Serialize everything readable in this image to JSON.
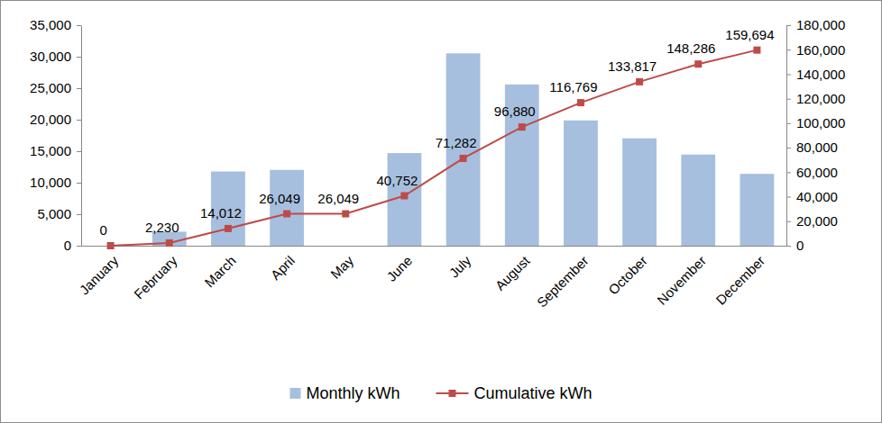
{
  "chart_data": {
    "type": "bar",
    "categories": [
      "January",
      "February",
      "March",
      "April",
      "May",
      "June",
      "July",
      "August",
      "September",
      "October",
      "November",
      "December"
    ],
    "series": [
      {
        "name": "Monthly kWh",
        "type": "bar",
        "color": "#a7bfde",
        "values": [
          0,
          2230,
          11782,
          12037,
          0,
          14703,
          30530,
          25598,
          19889,
          17048,
          14469,
          11408
        ]
      },
      {
        "name": "Cumulative kWh",
        "type": "line",
        "color": "#be4b48",
        "marker": "square",
        "axis": "y2",
        "data_labels": true,
        "values": [
          0,
          2230,
          14012,
          26049,
          26049,
          40752,
          71282,
          96880,
          116769,
          133817,
          148286,
          159694
        ],
        "value_labels": [
          "0",
          "2,230",
          "14,012",
          "26,049",
          "26,049",
          "40,752",
          "71,282",
          "96,880",
          "116,769",
          "133,817",
          "148,286",
          "159,694"
        ]
      }
    ],
    "ylim": [
      0,
      35000
    ],
    "yticks": [
      0,
      {
        "value": 5000,
        "label": "5,000"
      },
      {
        "value": 10000,
        "label": "10,000"
      },
      {
        "value": 15000,
        "label": "15,000"
      },
      {
        "value": 20000,
        "label": "20,000"
      },
      {
        "value": 25000,
        "label": "25,000"
      },
      {
        "value": 30000,
        "label": "30,000"
      },
      {
        "value": 35000,
        "label": "35,000"
      }
    ],
    "y2lim": [
      0,
      180000
    ],
    "y2ticks": [
      0,
      {
        "value": 20000,
        "label": "20,000"
      },
      {
        "value": 40000,
        "label": "40,000"
      },
      {
        "value": 60000,
        "label": "60,000"
      },
      {
        "value": 80000,
        "label": "80,000"
      },
      {
        "value": 100000,
        "label": "100,000"
      },
      {
        "value": 120000,
        "label": "120,000"
      },
      {
        "value": 140000,
        "label": "140,000"
      },
      {
        "value": 160000,
        "label": "160,000"
      },
      {
        "value": 180000,
        "label": "180,000"
      }
    ],
    "grid": false,
    "legend": "bottom"
  }
}
